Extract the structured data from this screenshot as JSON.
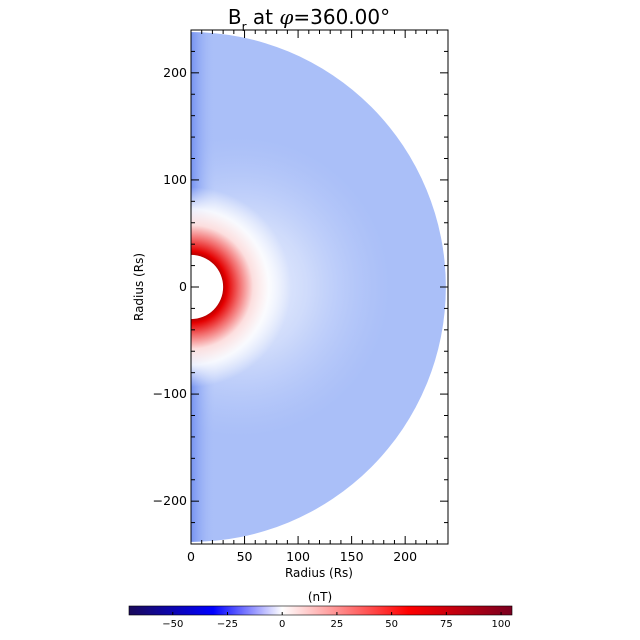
{
  "chart_data": {
    "type": "heatmap",
    "title": {
      "quantity": "B",
      "subscript": "r",
      "at_text": " at ",
      "phi_symbol": "φ",
      "phi_value": "=360.00°"
    },
    "xlabel": "Radius (Rs)",
    "ylabel": "Radius (Rs)",
    "xlim": [
      0,
      240
    ],
    "ylim": [
      -240,
      240
    ],
    "x_ticks": [
      0,
      50,
      100,
      150,
      200
    ],
    "x_tick_labels": [
      "0",
      "50",
      "100",
      "150",
      "200"
    ],
    "y_ticks": [
      200,
      100,
      0,
      -100,
      -200
    ],
    "y_tick_labels": [
      "200",
      "100",
      "0",
      "−100",
      "−200"
    ],
    "inner_radius": 30,
    "outer_radius": 238,
    "colorbar": {
      "label": "(nT)",
      "range": [
        -70,
        105
      ],
      "ticks": [
        -50,
        -25,
        0,
        25,
        50,
        75,
        100
      ],
      "tick_labels": [
        "−50",
        "−25",
        "0",
        "25",
        "50",
        "75",
        "100"
      ],
      "colors": [
        "#1a0a5a",
        "#0000ff",
        "#ffffff",
        "#ff0000",
        "#7a0020"
      ]
    },
    "field_description": {
      "background_value": 8,
      "near_sun_peak": 100,
      "colors": {
        "background": "#aabff8",
        "mid": "#c4d3fb",
        "light": "#e8eefd",
        "white": "#ffffff",
        "red": "#e40000",
        "dark_red": "#a00000",
        "blue_edge": "#6f8df0"
      }
    }
  }
}
